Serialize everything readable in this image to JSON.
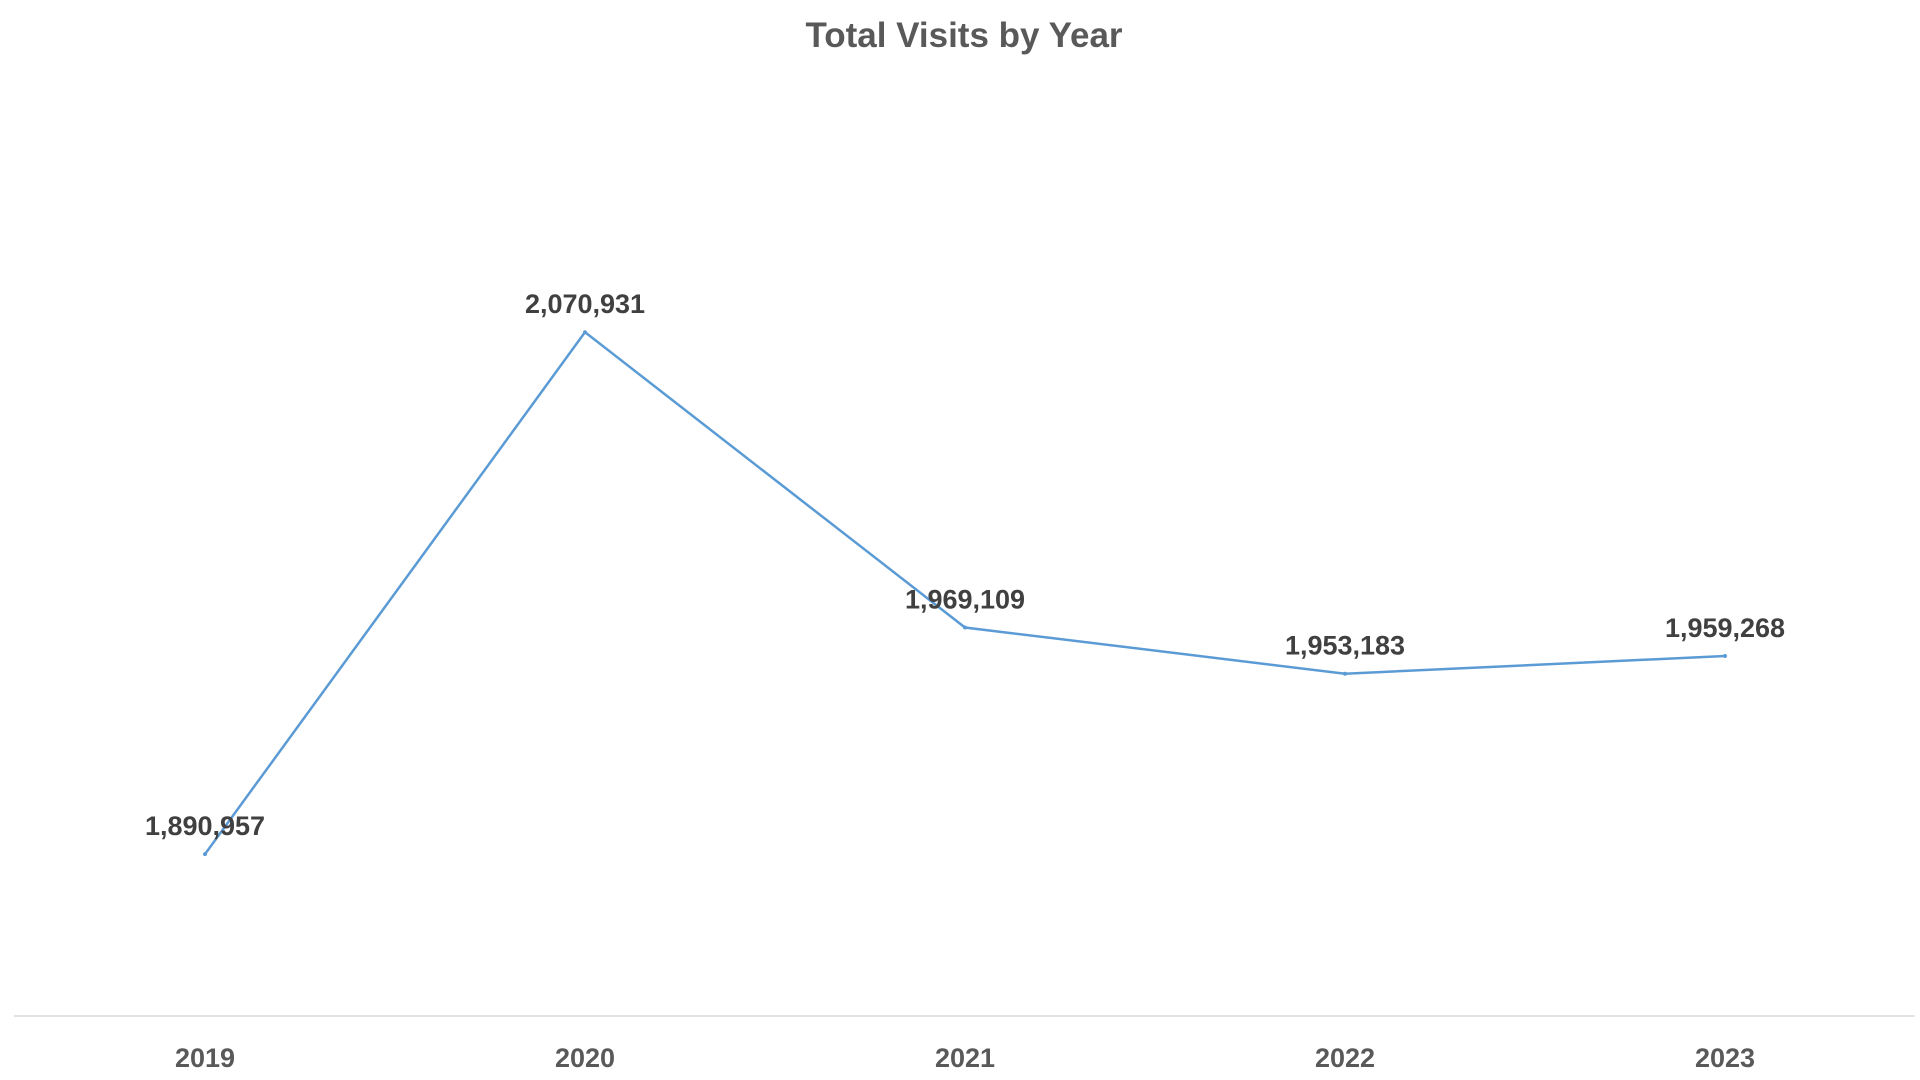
{
  "chart_data": {
    "type": "line",
    "title": "Total Visits by Year",
    "xlabel": "",
    "ylabel": "",
    "categories": [
      "2019",
      "2020",
      "2021",
      "2022",
      "2023"
    ],
    "series": [
      {
        "values": [
          1890957,
          2070931,
          1969109,
          1953183,
          1959268
        ],
        "labels": [
          "1,890,957",
          "2,070,931",
          "1,969,109",
          "1,953,183",
          "1,959,268"
        ],
        "color": "#5b9bd5"
      }
    ],
    "ylim": [
      1800000,
      2100000
    ],
    "grid": false,
    "legend": "none",
    "axis_line_color": "#d9d9d9"
  }
}
